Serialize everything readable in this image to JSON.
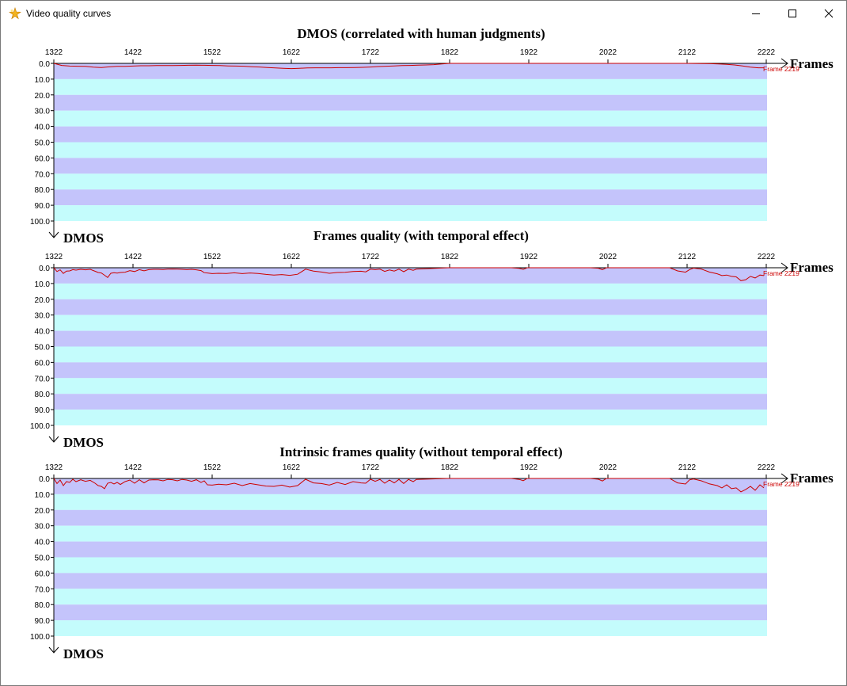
{
  "window": {
    "title": "Video quality curves",
    "app_icon": "sparkle-star-icon",
    "controls": {
      "minimize": "minimize-icon",
      "maximize": "maximize-icon",
      "close": "close-icon"
    }
  },
  "colors": {
    "band_dark": "#c4c4fb",
    "band_light": "#c4fcfc",
    "curve": "#cc0000",
    "marker_text": "#cc0000",
    "axis": "#000000"
  },
  "chart_data": [
    {
      "type": "line",
      "title": "DMOS (correlated with human judgments)",
      "xlabel": "Frames",
      "ylabel": "DMOS",
      "x_ticks": [
        "1322",
        "1422",
        "1522",
        "1622",
        "1722",
        "1822",
        "1922",
        "2022",
        "2122",
        "2222"
      ],
      "y_ticks": [
        "0.0",
        "10.0",
        "20.0",
        "30.0",
        "40.0",
        "50.0",
        "60.0",
        "70.0",
        "80.0",
        "90.0",
        "100.0"
      ],
      "xlim": [
        1322,
        2222
      ],
      "ylim": [
        0,
        100
      ],
      "y_axis_direction": "down",
      "bands": "alternating every 10 units",
      "marker_label": "Frame 2219",
      "series": [
        {
          "x": [
            1322,
            1332,
            1342,
            1352,
            1362,
            1372,
            1382,
            1392,
            1402,
            1412,
            1422,
            1432,
            1442,
            1452,
            1462,
            1472,
            1482,
            1492,
            1502,
            1512,
            1522,
            1532,
            1542,
            1552,
            1562,
            1572,
            1582,
            1592,
            1602,
            1612,
            1622,
            1632,
            1642,
            1652,
            1662,
            1672,
            1682,
            1692,
            1702,
            1712,
            1722,
            1732,
            1742,
            1752,
            1762,
            1772,
            1782,
            1792,
            1802,
            1812,
            1822,
            1922,
            2022,
            2122,
            2142,
            2152,
            2162,
            2172,
            2182,
            2192,
            2202,
            2212,
            2219
          ],
          "y": [
            0,
            1.3,
            1.7,
            1.8,
            1.9,
            2.4,
            2.6,
            2.2,
            1.9,
            1.9,
            1.7,
            1.5,
            1.5,
            1.4,
            1.4,
            1.4,
            1.3,
            1.2,
            1.1,
            1.2,
            1.3,
            1.4,
            1.6,
            1.7,
            1.8,
            2.1,
            2.3,
            2.6,
            2.9,
            3.1,
            3.3,
            3.1,
            2.9,
            2.8,
            2.8,
            2.8,
            2.7,
            2.7,
            2.6,
            2.5,
            2.3,
            2.0,
            1.8,
            1.6,
            1.4,
            1.3,
            1.1,
            1.0,
            0.8,
            0.4,
            0,
            0,
            0,
            0,
            0.1,
            0.2,
            0.4,
            0.6,
            1.0,
            1.6,
            2.4,
            2.8,
            2.8
          ]
        }
      ]
    },
    {
      "type": "line",
      "title": "Frames quality (with temporal effect)",
      "xlabel": "Frames",
      "ylabel": "DMOS",
      "x_ticks": [
        "1322",
        "1422",
        "1522",
        "1622",
        "1722",
        "1822",
        "1922",
        "2022",
        "2122",
        "2222"
      ],
      "y_ticks": [
        "0.0",
        "10.0",
        "20.0",
        "30.0",
        "40.0",
        "50.0",
        "60.0",
        "70.0",
        "80.0",
        "90.0",
        "100.0"
      ],
      "xlim": [
        1322,
        2222
      ],
      "ylim": [
        0,
        100
      ],
      "y_axis_direction": "down",
      "bands": "alternating every 10 units",
      "marker_label": "Frame 2219",
      "series": [
        {
          "x": [
            1322,
            1326,
            1330,
            1334,
            1338,
            1342,
            1346,
            1350,
            1356,
            1362,
            1368,
            1374,
            1378,
            1382,
            1386,
            1390,
            1394,
            1398,
            1402,
            1406,
            1412,
            1418,
            1424,
            1430,
            1436,
            1442,
            1448,
            1454,
            1460,
            1466,
            1472,
            1478,
            1484,
            1490,
            1496,
            1502,
            1508,
            1512,
            1516,
            1522,
            1530,
            1540,
            1550,
            1560,
            1570,
            1580,
            1590,
            1600,
            1610,
            1620,
            1630,
            1640,
            1650,
            1660,
            1670,
            1680,
            1690,
            1700,
            1710,
            1716,
            1722,
            1728,
            1734,
            1740,
            1746,
            1752,
            1758,
            1764,
            1770,
            1776,
            1780,
            1820,
            1900,
            1910,
            1915,
            1920,
            2000,
            2010,
            2015,
            2020,
            2100,
            2110,
            2120,
            2125,
            2130,
            2140,
            2150,
            2160,
            2166,
            2172,
            2178,
            2184,
            2190,
            2196,
            2202,
            2208,
            2214,
            2219
          ],
          "y": [
            0,
            2.4,
            1.3,
            3.6,
            2.1,
            2.0,
            1.2,
            1.5,
            1.0,
            1.3,
            1.0,
            2.2,
            3.0,
            3.3,
            4.7,
            6.2,
            3.5,
            3.1,
            3.4,
            3.0,
            2.8,
            1.8,
            2.4,
            1.2,
            1.9,
            1.2,
            1.0,
            1.0,
            1.1,
            0.9,
            0.8,
            0.9,
            1.0,
            1.2,
            1.0,
            1.3,
            1.8,
            3.1,
            3.3,
            3.7,
            3.5,
            3.6,
            3.2,
            3.7,
            3.3,
            3.6,
            4.2,
            4.6,
            4.3,
            4.8,
            4.1,
            0.9,
            2.1,
            2.7,
            3.5,
            3.0,
            2.9,
            2.4,
            2.2,
            2.6,
            0.9,
            1.2,
            0.9,
            2.3,
            1.4,
            2.1,
            0.9,
            2.5,
            0.9,
            1.6,
            0.9,
            0,
            0,
            0.4,
            1.0,
            0,
            0,
            0.3,
            1.2,
            0,
            0,
            2.0,
            2.8,
            1.2,
            0.2,
            0.8,
            2.7,
            3.8,
            5.0,
            4.6,
            5.5,
            5.8,
            8.2,
            7.6,
            5.5,
            6.5,
            4.6,
            5.0
          ]
        }
      ]
    },
    {
      "type": "line",
      "title": "Intrinsic frames quality (without temporal effect)",
      "xlabel": "Frames",
      "ylabel": "DMOS",
      "x_ticks": [
        "1322",
        "1422",
        "1522",
        "1622",
        "1722",
        "1822",
        "1922",
        "2022",
        "2122",
        "2222"
      ],
      "y_ticks": [
        "0.0",
        "10.0",
        "20.0",
        "30.0",
        "40.0",
        "50.0",
        "60.0",
        "70.0",
        "80.0",
        "90.0",
        "100.0"
      ],
      "xlim": [
        1322,
        2222
      ],
      "ylim": [
        0,
        100
      ],
      "y_axis_direction": "down",
      "bands": "alternating every 10 units",
      "marker_label": "Frame 2219",
      "series": [
        {
          "x": [
            1322,
            1326,
            1330,
            1334,
            1338,
            1342,
            1346,
            1350,
            1356,
            1362,
            1368,
            1374,
            1378,
            1382,
            1386,
            1390,
            1394,
            1398,
            1402,
            1406,
            1412,
            1418,
            1424,
            1430,
            1436,
            1442,
            1448,
            1454,
            1460,
            1466,
            1472,
            1478,
            1484,
            1490,
            1496,
            1502,
            1508,
            1512,
            1516,
            1522,
            1530,
            1540,
            1550,
            1560,
            1570,
            1580,
            1590,
            1600,
            1610,
            1620,
            1630,
            1640,
            1650,
            1660,
            1670,
            1680,
            1690,
            1700,
            1710,
            1716,
            1722,
            1728,
            1734,
            1740,
            1746,
            1752,
            1758,
            1764,
            1770,
            1776,
            1780,
            1820,
            1900,
            1910,
            1915,
            1920,
            2000,
            2010,
            2015,
            2020,
            2100,
            2110,
            2120,
            2125,
            2130,
            2140,
            2150,
            2160,
            2166,
            2172,
            2178,
            2184,
            2190,
            2196,
            2202,
            2208,
            2214,
            2219
          ],
          "y": [
            0,
            3.2,
            1.0,
            4.5,
            2.0,
            2.5,
            0.5,
            2.0,
            0.8,
            1.8,
            1.2,
            3.0,
            4.5,
            5.0,
            6.5,
            3.0,
            2.5,
            3.5,
            2.5,
            3.8,
            2.0,
            1.0,
            3.0,
            0.8,
            2.8,
            1.0,
            0.8,
            0.9,
            1.5,
            0.6,
            0.8,
            1.5,
            0.6,
            1.0,
            1.8,
            0.8,
            2.5,
            1.5,
            4.0,
            4.2,
            3.6,
            4.0,
            3.0,
            4.5,
            3.2,
            4.0,
            4.8,
            5.0,
            4.2,
            5.5,
            4.5,
            0.5,
            2.8,
            3.2,
            4.2,
            2.5,
            3.8,
            2.0,
            2.8,
            3.0,
            0.5,
            1.8,
            0.6,
            3.0,
            1.0,
            2.8,
            0.6,
            3.2,
            0.6,
            2.0,
            0.6,
            0,
            0,
            0.6,
            1.4,
            0,
            0,
            0.5,
            1.6,
            0,
            0,
            2.8,
            3.5,
            0.9,
            0.3,
            1.5,
            3.4,
            4.5,
            6.0,
            4.0,
            6.5,
            6.0,
            8.5,
            7.0,
            5.0,
            7.5,
            4.0,
            6.0
          ]
        }
      ]
    }
  ]
}
